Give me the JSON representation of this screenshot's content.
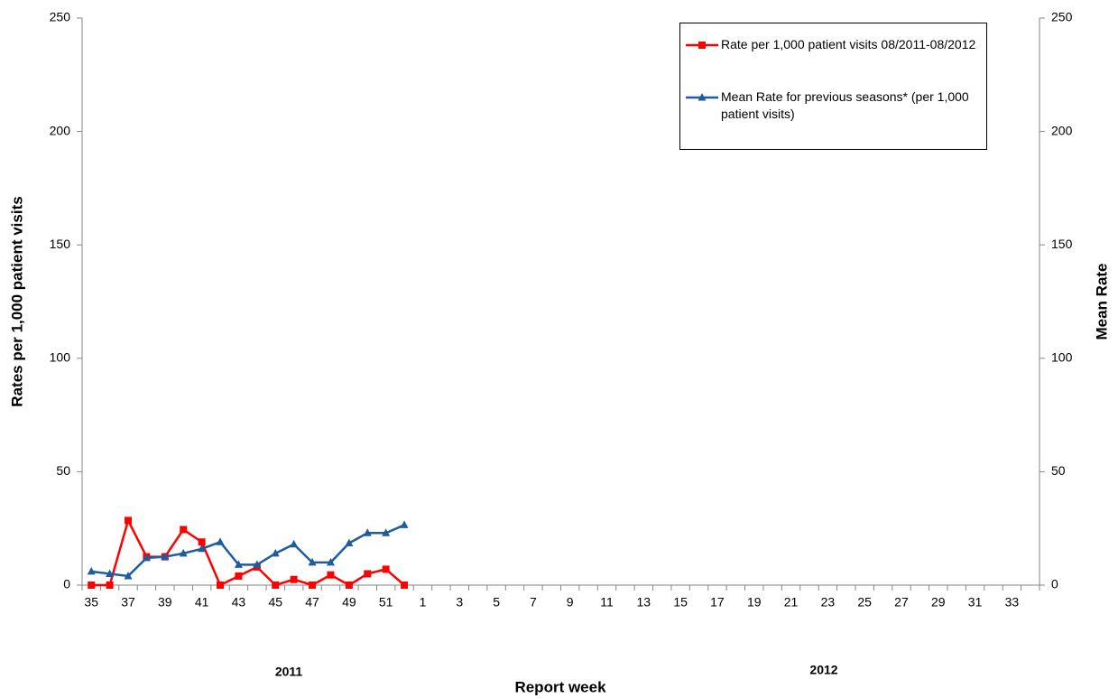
{
  "chart_data": {
    "type": "line",
    "y_label": "Rates per 1,000 patient visits",
    "y2_label": "Mean Rate",
    "x_label": "Report week",
    "x_group_labels": [
      "2011",
      "2012"
    ],
    "categories": [
      "35",
      null,
      "37",
      null,
      "39",
      null,
      "41",
      null,
      "43",
      null,
      "45",
      null,
      "47",
      null,
      "49",
      null,
      "51",
      null,
      "1",
      null,
      "3",
      null,
      "5",
      null,
      "7",
      null,
      "9",
      null,
      "11",
      null,
      "13",
      null,
      "15",
      null,
      "17",
      null,
      "19",
      null,
      "21",
      null,
      "23",
      null,
      "25",
      null,
      "27",
      null,
      "29",
      null,
      "31",
      null,
      "33",
      null
    ],
    "series": [
      {
        "name": "Rate per 1,000 patient visits 08/2011-08/2012",
        "color": "#ff0000",
        "marker": "square",
        "values": [
          0,
          0,
          28.5,
          12.5,
          12.5,
          24.5,
          19,
          0,
          4,
          8,
          0,
          2.5,
          0,
          4.5,
          0,
          5,
          7,
          0,
          null,
          null,
          null,
          null,
          null,
          null,
          null,
          null,
          null,
          null,
          null,
          null,
          null,
          null,
          null,
          null,
          null,
          null,
          null,
          null,
          null,
          null,
          null,
          null,
          null,
          null,
          null,
          null,
          null,
          null,
          null,
          null,
          null,
          null
        ]
      },
      {
        "name": "Mean Rate  for previous seasons* (per 1,000 patient visits)",
        "color": "#1f5c9e",
        "marker": "triangle",
        "axis": "y2",
        "values": [
          6,
          5,
          4,
          12,
          12.5,
          14,
          16,
          19,
          9,
          9,
          14,
          18,
          10,
          10,
          18.5,
          23,
          23,
          26.5,
          null,
          null,
          null,
          null,
          null,
          null,
          null,
          null,
          null,
          null,
          null,
          null,
          null,
          null,
          null,
          null,
          null,
          null,
          null,
          null,
          null,
          null,
          null,
          null,
          null,
          null,
          null,
          null,
          null,
          null,
          null,
          null,
          null,
          null
        ]
      }
    ],
    "ylim": [
      0,
      250
    ],
    "yticks": [
      0,
      50,
      100,
      150,
      200,
      250
    ],
    "y2lim": [
      0,
      250
    ],
    "y2ticks": [
      0,
      50,
      100,
      150,
      200,
      250
    ],
    "grid": false
  }
}
